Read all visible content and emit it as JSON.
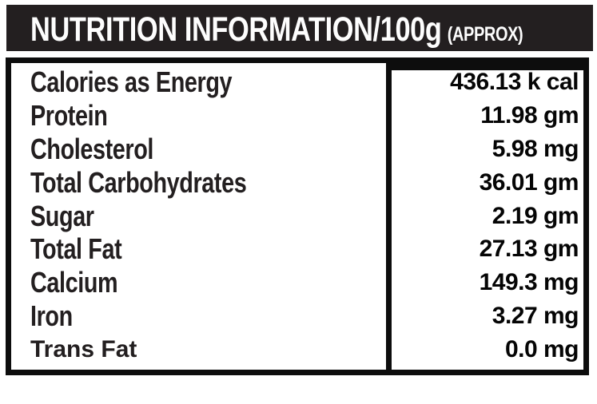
{
  "header": {
    "title": "NUTRITION INFORMATION/100g",
    "suffix": "(APPROX)"
  },
  "colors": {
    "ink": "#231f20",
    "paper": "#ffffff",
    "header_bg": "#231f20",
    "header_text": "#fdfdfd",
    "border": "#0d0d0d",
    "value_ink": "#050505"
  },
  "table": {
    "rows": [
      {
        "label": "Calories as Energy",
        "value": "436.13 k cal"
      },
      {
        "label": "Protein",
        "value": "11.98 gm"
      },
      {
        "label": "Cholesterol",
        "value": "5.98 mg"
      },
      {
        "label": "Total Carbohydrates",
        "value": "36.01 gm"
      },
      {
        "label": "Sugar",
        "value": "2.19 gm"
      },
      {
        "label": "Total Fat",
        "value": "27.13 gm"
      },
      {
        "label": "Calcium",
        "value": "149.3 mg"
      },
      {
        "label": "Iron",
        "value": "3.27 mg"
      },
      {
        "label": "Trans Fat",
        "value": "0.0 mg"
      }
    ]
  }
}
